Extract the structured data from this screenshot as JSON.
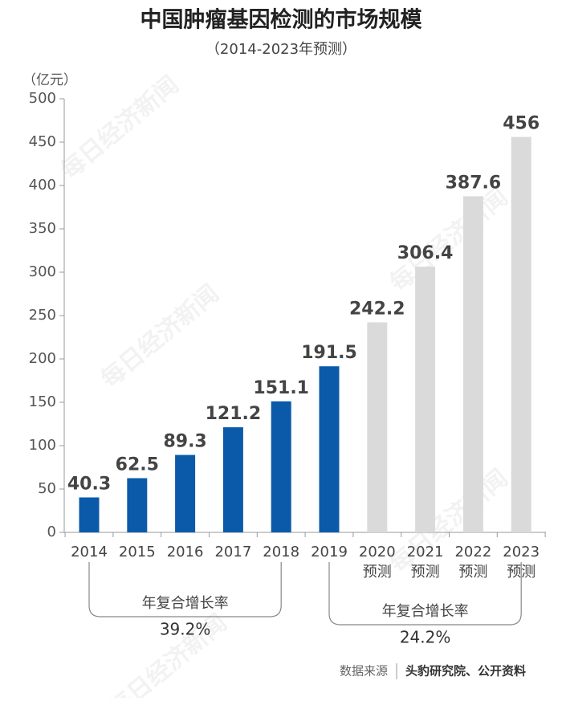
{
  "chart_data": {
    "type": "bar",
    "title": "中国肿瘤基因检测的市场规模",
    "subtitle": "（2014-2023年预测）",
    "y_unit": "（亿元）",
    "categories": [
      "2014",
      "2015",
      "2016",
      "2017",
      "2018",
      "2019",
      "2020",
      "2021",
      "2022",
      "2023"
    ],
    "category_sublabels": [
      null,
      null,
      null,
      null,
      null,
      null,
      "预测",
      "预测",
      "预测",
      "预测"
    ],
    "values": [
      40.3,
      62.5,
      89.3,
      121.2,
      151.1,
      191.5,
      242.2,
      306.4,
      387.6,
      456
    ],
    "colors": [
      "#0b5aaa",
      "#0b5aaa",
      "#0b5aaa",
      "#0b5aaa",
      "#0b5aaa",
      "#0b5aaa",
      "#dadada",
      "#dadada",
      "#dadada",
      "#dadada"
    ],
    "ylim": [
      0,
      500
    ],
    "yticks": [
      0,
      50,
      100,
      150,
      200,
      250,
      300,
      350,
      400,
      450,
      500
    ],
    "grid": false,
    "annotations": [
      {
        "label": "年复合增长率",
        "value": 39.2,
        "value_label": "39.2%"
      },
      {
        "label": "年复合增长率",
        "value": 24.2,
        "value_label": "24.2%"
      }
    ],
    "source_label": "数据来源",
    "source": "头豹研究院、公开资料",
    "watermark": "每日经济新闻"
  }
}
